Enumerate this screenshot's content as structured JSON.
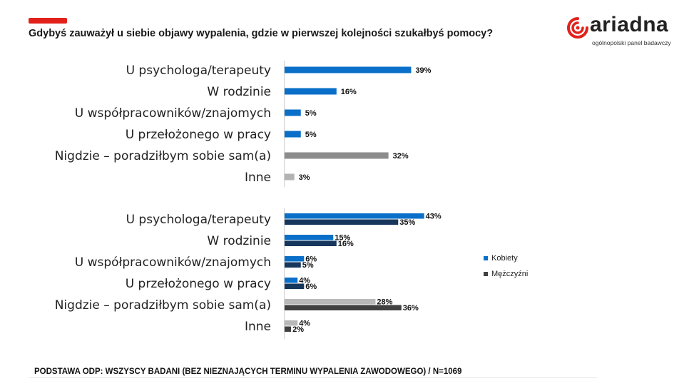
{
  "header": {
    "title": "Gdybyś zauważył u siebie objawy wypalenia, gdzie w pierwszej kolejności szukałbyś pomocy?"
  },
  "logo": {
    "word": "ariadna",
    "tagline": "ogólnopolski panel badawczy"
  },
  "chart_data": [
    {
      "type": "bar",
      "orientation": "horizontal",
      "categories": [
        "U psychologa/terapeuty",
        "W rodzinie",
        "U współpracowników/znajomych",
        "U przełożonego w pracy",
        "Nigdzie – poradziłbym sobie sam(a)",
        "Inne"
      ],
      "values": [
        39,
        16,
        5,
        5,
        32,
        3
      ],
      "labels": [
        "39%",
        "16%",
        "5%",
        "5%",
        "32%",
        "3%"
      ],
      "colors": [
        "#0a6fc8",
        "#0a6fc8",
        "#0a6fc8",
        "#0a6fc8",
        "#8c8c8c",
        "#b3b3b3"
      ],
      "xlim": [
        0,
        100
      ],
      "grid": false
    },
    {
      "type": "bar",
      "orientation": "horizontal",
      "categories": [
        "U psychologa/terapeuty",
        "W rodzinie",
        "U współpracowników/znajomych",
        "U przełożonego w pracy",
        "Nigdzie – poradziłbym sobie sam(a)",
        "Inne"
      ],
      "series": [
        {
          "name": "Kobiety",
          "values": [
            43,
            15,
            6,
            4,
            28,
            4
          ],
          "labels": [
            "43%",
            "15%",
            "6%",
            "4%",
            "28%",
            "4%"
          ]
        },
        {
          "name": "Mężczyźni",
          "values": [
            35,
            16,
            5,
            6,
            36,
            2
          ],
          "labels": [
            "35%",
            "16%",
            "5%",
            "6%",
            "36%",
            "2%"
          ]
        }
      ],
      "series_colors": [
        "#0a6fc8",
        "#16365c"
      ],
      "gray_colors": [
        "#b8b8b8",
        "#404040"
      ],
      "gray_from_index": 4,
      "legend_colors": [
        "#0a6fc8",
        "#404040"
      ],
      "xlim": [
        0,
        100
      ],
      "legend": "right",
      "grid": false
    }
  ],
  "footer": {
    "note": "PODSTAWA ODP: WSZYSCY BADANI (BEZ NIEZNAJĄCYCH TERMINU WYPALENIA ZAWODOWEGO) / N=1069"
  }
}
